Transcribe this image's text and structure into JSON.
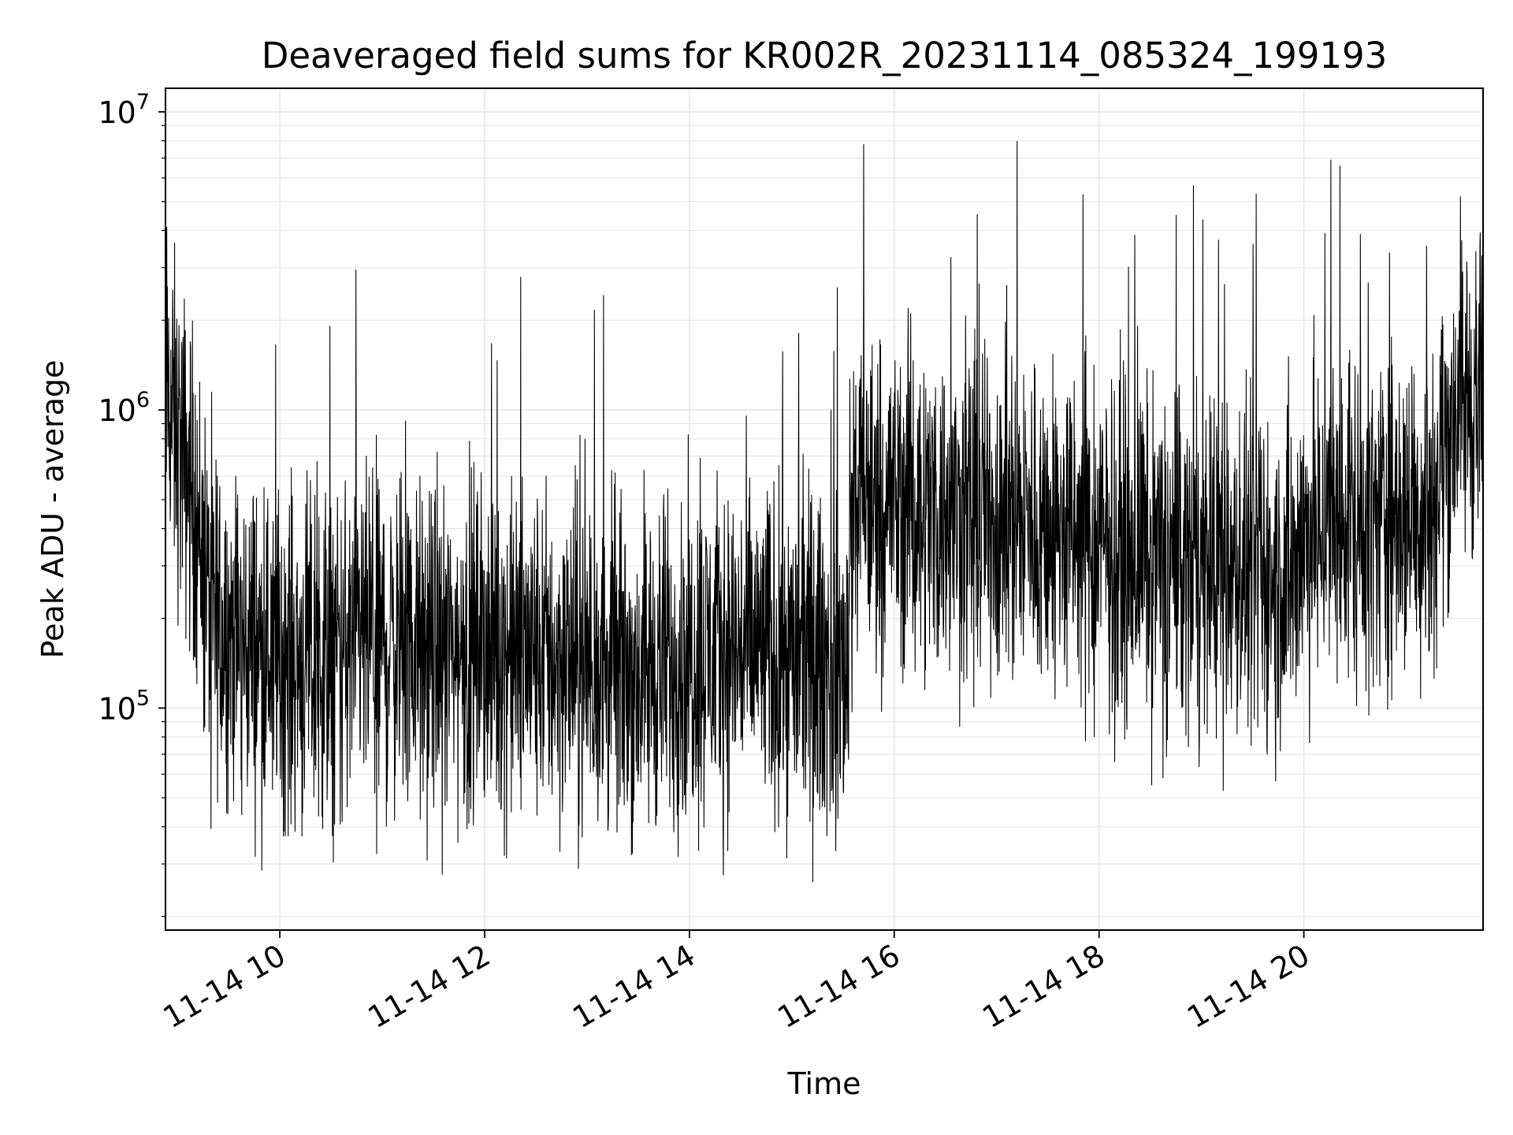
{
  "chart_data": {
    "type": "line",
    "title": "Deaveraged field sums for KR002R_20231114_085324_199193",
    "xlabel": "Time",
    "ylabel": "Peak ADU - average",
    "yscale": "log",
    "xlim": [
      "2023-11-14T08:53",
      "2023-11-14T21:45"
    ],
    "ylim": [
      18000,
      12000000
    ],
    "x_ticks": [
      {
        "t": "2023-11-14T10:00",
        "label": "11-14 10"
      },
      {
        "t": "2023-11-14T12:00",
        "label": "11-14 12"
      },
      {
        "t": "2023-11-14T14:00",
        "label": "11-14 14"
      },
      {
        "t": "2023-11-14T16:00",
        "label": "11-14 16"
      },
      {
        "t": "2023-11-14T18:00",
        "label": "11-14 18"
      },
      {
        "t": "2023-11-14T20:00",
        "label": "11-14 20"
      }
    ],
    "y_ticks": [
      {
        "v": 100000,
        "base": "10",
        "exp": "5"
      },
      {
        "v": 1000000,
        "base": "10",
        "exp": "6"
      },
      {
        "v": 10000000,
        "base": "10",
        "exp": "7"
      }
    ],
    "grid": true,
    "line_color": "#000000",
    "grid_color": "#e6e6e6",
    "series": [
      {
        "x": [
          "2023-11-14T08:53",
          "2023-11-14T09:00",
          "2023-11-14T09:10",
          "2023-11-14T09:20",
          "2023-11-14T09:40",
          "2023-11-14T10:00",
          "2023-11-14T10:20",
          "2023-11-14T10:45",
          "2023-11-14T11:00",
          "2023-11-14T11:30",
          "2023-11-14T12:00",
          "2023-11-14T12:30",
          "2023-11-14T13:00",
          "2023-11-14T13:30",
          "2023-11-14T14:00",
          "2023-11-14T14:30",
          "2023-11-14T15:00",
          "2023-11-14T15:25",
          "2023-11-14T15:32",
          "2023-11-14T15:36",
          "2023-11-14T16:00",
          "2023-11-14T16:30",
          "2023-11-14T17:00",
          "2023-11-14T17:30",
          "2023-11-14T18:00",
          "2023-11-14T18:30",
          "2023-11-14T19:00",
          "2023-11-14T19:30",
          "2023-11-14T19:50",
          "2023-11-14T20:00",
          "2023-11-14T20:30",
          "2023-11-14T21:00",
          "2023-11-14T21:15",
          "2023-11-14T21:30",
          "2023-11-14T21:45"
        ],
        "y": [
          1200000,
          800000,
          500000,
          200000,
          170000,
          150000,
          140000,
          160000,
          170000,
          150000,
          160000,
          150000,
          140000,
          130000,
          150000,
          160000,
          150000,
          140000,
          130000,
          500000,
          500000,
          450000,
          450000,
          400000,
          350000,
          330000,
          300000,
          280000,
          260000,
          380000,
          420000,
          450000,
          500000,
          1100000,
          1050000
        ]
      }
    ]
  }
}
